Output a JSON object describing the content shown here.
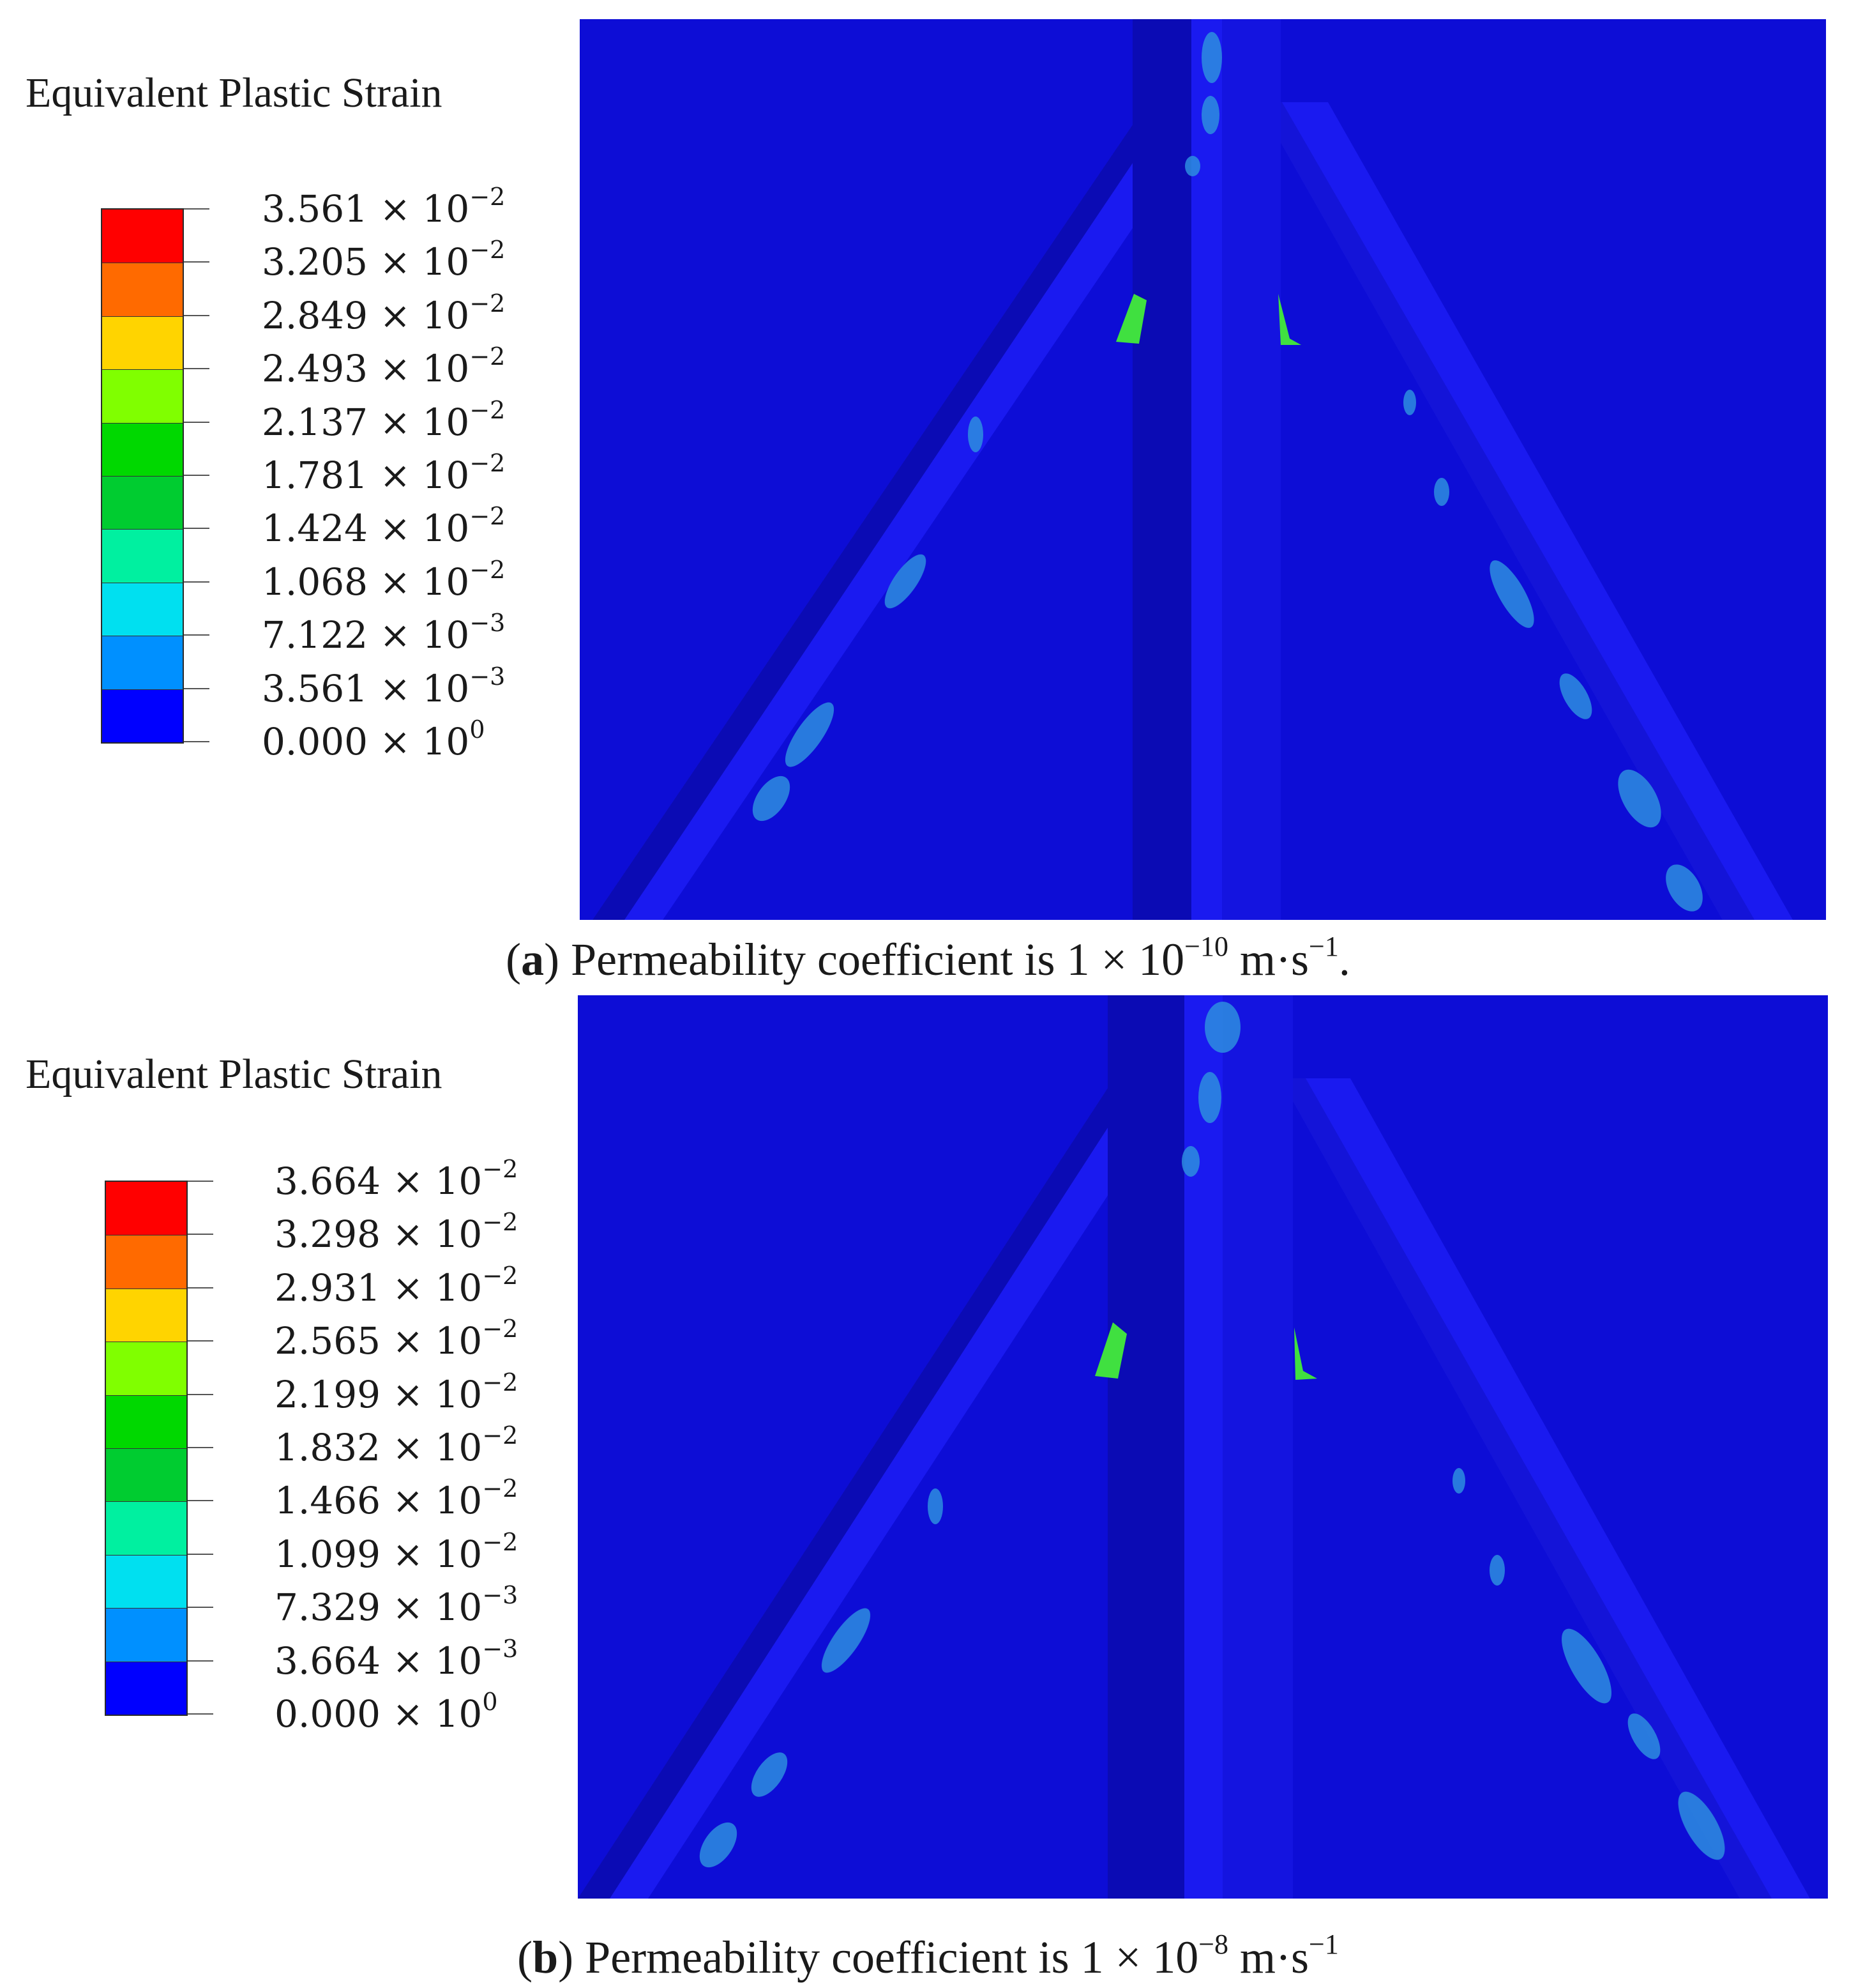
{
  "panels": [
    {
      "legend_title": "Equivalent Plastic Strain",
      "ticks": [
        {
          "mantissa": "3.561",
          "exp": "−2"
        },
        {
          "mantissa": "3.205",
          "exp": "−2"
        },
        {
          "mantissa": "2.849",
          "exp": "−2"
        },
        {
          "mantissa": "2.493",
          "exp": "−2"
        },
        {
          "mantissa": "2.137",
          "exp": "−2"
        },
        {
          "mantissa": "1.781",
          "exp": "−2"
        },
        {
          "mantissa": "1.424",
          "exp": "−2"
        },
        {
          "mantissa": "1.068",
          "exp": "−2"
        },
        {
          "mantissa": "7.122",
          "exp": "−3"
        },
        {
          "mantissa": "3.561",
          "exp": "−3"
        },
        {
          "mantissa": "0.000",
          "exp": "0"
        }
      ],
      "caption": {
        "letter": "a",
        "text_before": "Permeability coefficient is 1 × 10",
        "exp": "−10",
        "unit": " m·s",
        "unit_exp": "−1",
        "end": "."
      }
    },
    {
      "legend_title": "Equivalent Plastic Strain",
      "ticks": [
        {
          "mantissa": "3.664",
          "exp": "−2"
        },
        {
          "mantissa": "3.298",
          "exp": "−2"
        },
        {
          "mantissa": "2.931",
          "exp": "−2"
        },
        {
          "mantissa": "2.565",
          "exp": "−2"
        },
        {
          "mantissa": "2.199",
          "exp": "−2"
        },
        {
          "mantissa": "1.832",
          "exp": "−2"
        },
        {
          "mantissa": "1.466",
          "exp": "−2"
        },
        {
          "mantissa": "1.099",
          "exp": "−2"
        },
        {
          "mantissa": "7.329",
          "exp": "−3"
        },
        {
          "mantissa": "3.664",
          "exp": "−3"
        },
        {
          "mantissa": "0.000",
          "exp": "0"
        }
      ],
      "caption": {
        "letter": "b",
        "text_before": "Permeability coefficient is 1 × 10",
        "exp": "−8",
        "unit": " m·s",
        "unit_exp": "−1",
        "end": ""
      }
    }
  ],
  "colors": {
    "scale": [
      "#ff0000",
      "#ff6a00",
      "#ffd400",
      "#80ff00",
      "#00d800",
      "#00cc30",
      "#00f0a0",
      "#00e0f0",
      "#0090ff",
      "#0000ff"
    ],
    "background": "#0d0dd6",
    "member": "#1a1af0",
    "member_shadow": "#0b0bb4",
    "hotspot_green": "#40e040",
    "patch": "#2e8ee0"
  }
}
